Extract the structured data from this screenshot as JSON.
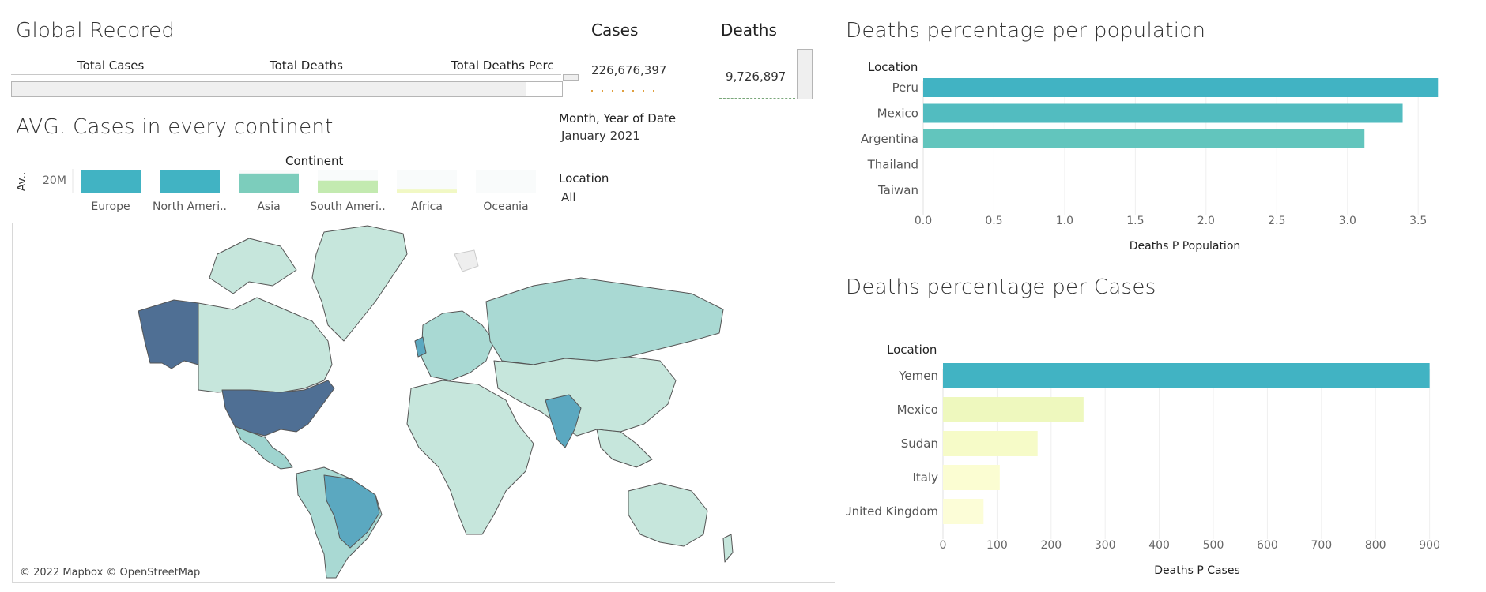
{
  "global": {
    "title": "Global Recored",
    "columns": [
      "Total Cases",
      "Total Deaths",
      "Total Deaths Perc"
    ]
  },
  "cases": {
    "title": "Cases",
    "value": "226,676,397"
  },
  "deaths": {
    "title": "Deaths",
    "value": "9,726,897"
  },
  "filters": {
    "date_label": "Month, Year of Date",
    "date_value": "January 2021",
    "location_label": "Location",
    "location_value": "All"
  },
  "map": {
    "attribution": "© 2022 Mapbox © OpenStreetMap"
  },
  "colors": {
    "teal_dark": "#41b3c3",
    "teal_mid": "#5dc3bd",
    "teal_light": "#7ccdbc",
    "green_light": "#c3eab0",
    "yellow_light": "#f1f8c4",
    "map_light": "#c6e6dc",
    "map_dark": "#4f6f94",
    "map_blue": "#5ba8c0"
  },
  "chart_data": [
    {
      "type": "bar",
      "title": "AVG. Cases in every continent",
      "column_header": "Continent",
      "ylabel": "Av..",
      "yticks": [
        "20M"
      ],
      "categories": [
        "Europe",
        "North Ameri..",
        "Asia",
        "South Ameri..",
        "Africa",
        "Oceania"
      ],
      "values": [
        22,
        22,
        19,
        12,
        3,
        0
      ],
      "ylim": [
        0,
        22
      ]
    },
    {
      "type": "bar",
      "orientation": "horizontal",
      "title": "Deaths percentage per population",
      "row_header": "Location",
      "xlabel": "Deaths P Population",
      "categories": [
        "Peru",
        "Mexico",
        "Argentina",
        "Thailand",
        "Taiwan"
      ],
      "values": [
        3.64,
        3.39,
        3.12,
        0,
        0
      ],
      "xlim": [
        0,
        3.7
      ],
      "xticks": [
        "0.0",
        "0.5",
        "1.0",
        "1.5",
        "2.0",
        "2.5",
        "3.0",
        "3.5"
      ],
      "bar_colors": [
        "#41b3c3",
        "#52bcc0",
        "#62c5bd",
        "#ffffff",
        "#ffffff"
      ],
      "grid": true
    },
    {
      "type": "bar",
      "orientation": "horizontal",
      "title": "Deaths percentage per Cases",
      "row_header": "Location",
      "xlabel": "Deaths P Cases",
      "categories": [
        "Yemen",
        "Mexico",
        "Sudan",
        "Italy",
        "United Kingdom"
      ],
      "values": [
        900,
        260,
        175,
        105,
        75
      ],
      "xlim": [
        0,
        940
      ],
      "xticks": [
        "0",
        "100",
        "200",
        "300",
        "400",
        "500",
        "600",
        "700",
        "800",
        "900"
      ],
      "bar_colors": [
        "#41b3c3",
        "#eef8be",
        "#f6fbc8",
        "#fbfdd2",
        "#fcfdd7"
      ],
      "grid": true
    }
  ]
}
